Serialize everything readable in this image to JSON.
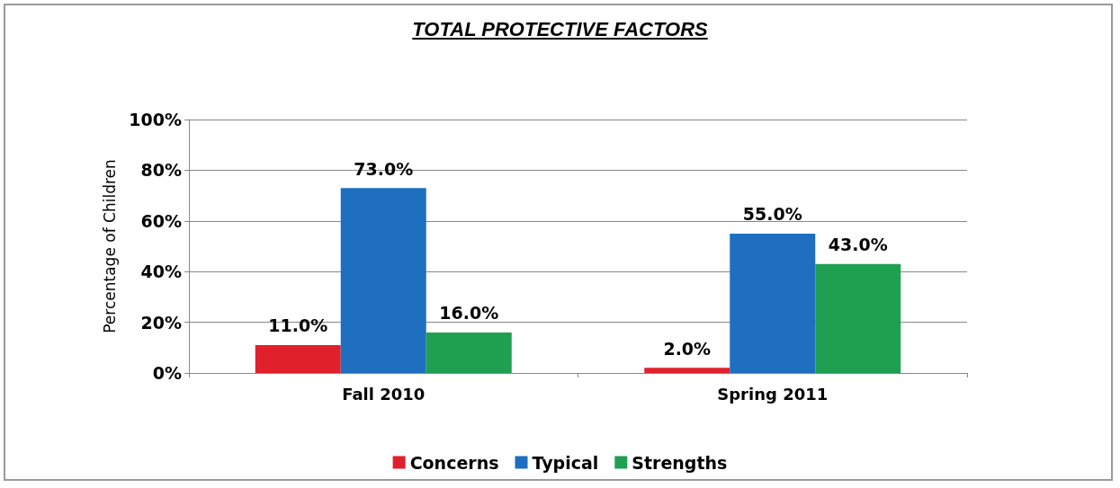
{
  "chart_data": {
    "type": "bar",
    "title": "TOTAL PROTECTIVE FACTORS",
    "ylabel": "Percentage of Children",
    "categories": [
      "Fall 2010",
      "Spring 2011"
    ],
    "series": [
      {
        "name": "Concerns",
        "color": "#e0202a",
        "values": [
          11,
          2
        ],
        "value_labels": [
          "11.0%",
          "2.0%"
        ]
      },
      {
        "name": "Typical",
        "color": "#1f6fc0",
        "values": [
          73,
          55
        ],
        "value_labels": [
          "73.0%",
          "55.0%"
        ]
      },
      {
        "name": "Strengths",
        "color": "#1fa050",
        "values": [
          16,
          43
        ],
        "value_labels": [
          "16.0%",
          "43.0%"
        ]
      }
    ],
    "ylim": [
      0,
      100
    ],
    "yticks": [
      {
        "value": 0,
        "label": "0%"
      },
      {
        "value": 20,
        "label": "20%"
      },
      {
        "value": 40,
        "label": "40%"
      },
      {
        "value": 60,
        "label": "60%"
      },
      {
        "value": 80,
        "label": "80%"
      },
      {
        "value": 100,
        "label": "100%"
      }
    ],
    "grid": "y",
    "legend": "bottom"
  }
}
